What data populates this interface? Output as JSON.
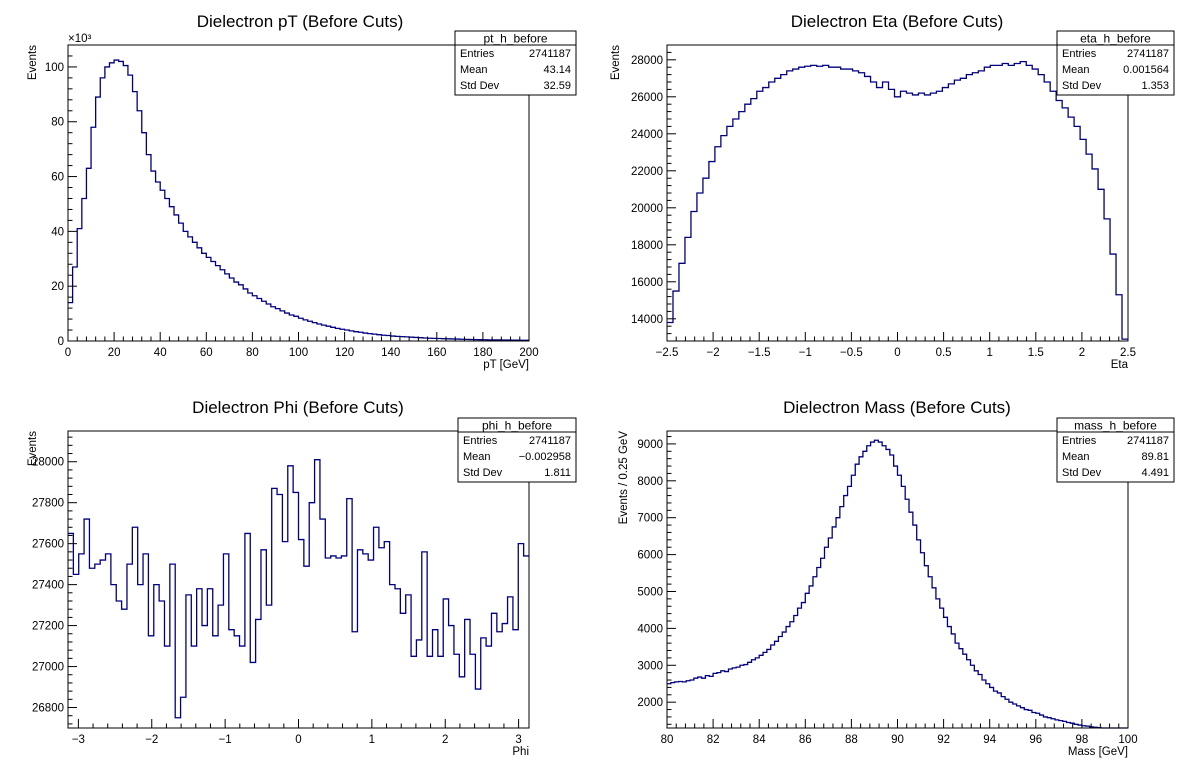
{
  "chart_data": [
    {
      "id": "pt",
      "type": "histogram",
      "title": "Dielectron pT (Before Cuts)",
      "xlabel": "pT [GeV]",
      "ylabel": "Events",
      "exponent": "×10³",
      "xlim": [
        0,
        200
      ],
      "ylim": [
        0,
        108
      ],
      "xticks": [
        0,
        20,
        40,
        60,
        80,
        100,
        120,
        140,
        160,
        180,
        200
      ],
      "yticks": [
        0,
        20,
        40,
        60,
        80,
        100
      ],
      "stats": {
        "name": "pt_h_before",
        "entries_label": "Entries",
        "entries": "2741187",
        "mean_label": "Mean",
        "mean": "43.14",
        "std_label": "Std Dev",
        "std": "32.59"
      },
      "bin_edges": [
        0,
        200
      ],
      "values": [
        14,
        27,
        41,
        52,
        63,
        78,
        89,
        96,
        100,
        101.5,
        102.5,
        102,
        100.5,
        97,
        91,
        84,
        76,
        68,
        62,
        58,
        55,
        52,
        49,
        46,
        43,
        40,
        38,
        36,
        34,
        32,
        30.5,
        29,
        27.5,
        26,
        24.5,
        23,
        21.5,
        20.5,
        19,
        17.5,
        16.5,
        15.5,
        14.5,
        13.5,
        12.5,
        11.8,
        11,
        10.2,
        9.5,
        9,
        8.3,
        7.7,
        7.2,
        6.7,
        6.2,
        5.8,
        5.4,
        5,
        4.6,
        4.3,
        4,
        3.7,
        3.4,
        3.2,
        2.9,
        2.7,
        2.5,
        2.3,
        2.1,
        2,
        1.8,
        1.7,
        1.6,
        1.5,
        1.4,
        1.3,
        1.2,
        1.1,
        1,
        0.95,
        0.9,
        0.85,
        0.8,
        0.75,
        0.7,
        0.65,
        0.6,
        0.55,
        0.5,
        0.48,
        0.45,
        0.42,
        0.4,
        0.38,
        0.36,
        0.34,
        0.32,
        0.3,
        0.28,
        0.26
      ]
    },
    {
      "id": "eta",
      "type": "histogram",
      "title": "Dielectron Eta (Before Cuts)",
      "xlabel": "Eta",
      "ylabel": "Events",
      "xlim": [
        -2.5,
        2.5
      ],
      "ylim": [
        12800,
        28800
      ],
      "xticks": [
        -2.5,
        -2,
        -1.5,
        -1,
        -0.5,
        0,
        0.5,
        1,
        1.5,
        2,
        2.5
      ],
      "yticks": [
        14000,
        16000,
        18000,
        20000,
        22000,
        24000,
        26000,
        28000
      ],
      "stats": {
        "name": "eta_h_before",
        "entries_label": "Entries",
        "entries": "2741187",
        "mean_label": "Mean",
        "mean": "0.001564",
        "std_label": "Std Dev",
        "std": "1.353"
      },
      "bin_edges": [
        -2.5,
        2.5
      ],
      "values": [
        13800,
        15500,
        17000,
        18400,
        19800,
        20800,
        21600,
        22500,
        23300,
        23900,
        24400,
        24800,
        25200,
        25600,
        25900,
        26300,
        26500,
        26800,
        27000,
        27200,
        27400,
        27500,
        27600,
        27650,
        27700,
        27650,
        27700,
        27600,
        27600,
        27500,
        27500,
        27400,
        27300,
        27100,
        26800,
        26500,
        26800,
        26400,
        26000,
        26300,
        26200,
        26100,
        26200,
        26100,
        26200,
        26300,
        26500,
        26700,
        26900,
        27000,
        27200,
        27300,
        27400,
        27600,
        27700,
        27700,
        27800,
        27700,
        27800,
        27900,
        27700,
        27500,
        27200,
        26800,
        26300,
        25800,
        25400,
        24900,
        24400,
        23700,
        22900,
        22100,
        21000,
        19400,
        17500,
        15300,
        12900
      ]
    },
    {
      "id": "phi",
      "type": "histogram",
      "title": "Dielectron Phi (Before Cuts)",
      "xlabel": "Phi",
      "ylabel": "Events",
      "xlim": [
        -3.14159,
        3.14159
      ],
      "ylim": [
        26700,
        28150
      ],
      "xticks": [
        -3,
        -2,
        -1,
        0,
        1,
        2,
        3
      ],
      "yticks": [
        26800,
        27000,
        27200,
        27400,
        27600,
        27800,
        28000
      ],
      "stats": {
        "name": "phi_h_before",
        "entries_label": "Entries",
        "entries": "2741187",
        "mean_label": "Mean",
        "mean": "−0.002958",
        "std_label": "Std Dev",
        "std": "1.811"
      },
      "bin_edges": [
        -3.14159,
        3.14159
      ],
      "values": [
        27650,
        27450,
        27550,
        27720,
        27480,
        27500,
        27520,
        27550,
        27400,
        27320,
        27280,
        27500,
        27680,
        27400,
        27550,
        27150,
        27400,
        27320,
        27100,
        27500,
        26750,
        26850,
        27350,
        27100,
        27380,
        27200,
        27380,
        27150,
        27300,
        27550,
        27180,
        27150,
        27100,
        27650,
        27020,
        27230,
        27570,
        27300,
        27870,
        27840,
        27610,
        27980,
        27850,
        27620,
        27490,
        27800,
        28010,
        27720,
        27530,
        27540,
        27530,
        27540,
        27820,
        27170,
        27570,
        27550,
        27520,
        27680,
        27580,
        27610,
        27400,
        27380,
        27260,
        27350,
        27050,
        27130,
        27560,
        27050,
        27180,
        27050,
        27330,
        27200,
        27060,
        26950,
        27230,
        27060,
        26890,
        27140,
        27100,
        27260,
        27170,
        27210,
        27340,
        27180,
        27600,
        27540
      ]
    },
    {
      "id": "mass",
      "type": "histogram",
      "title": "Dielectron Mass (Before Cuts)",
      "xlabel": "Mass [GeV]",
      "ylabel": "Events / 0.25 GeV",
      "xlim": [
        80,
        100
      ],
      "ylim": [
        1300,
        9350
      ],
      "xticks": [
        80,
        82,
        84,
        86,
        88,
        90,
        92,
        94,
        96,
        98,
        100
      ],
      "yticks": [
        2000,
        3000,
        4000,
        5000,
        6000,
        7000,
        8000,
        9000
      ],
      "stats": {
        "name": "mass_h_before",
        "entries_label": "Entries",
        "entries": "2741187",
        "mean_label": "Mean",
        "mean": "89.81",
        "std_label": "Std Dev",
        "std": "4.491"
      },
      "bin_edges": [
        80,
        100
      ],
      "values": [
        2500,
        2530,
        2550,
        2560,
        2550,
        2580,
        2600,
        2650,
        2680,
        2650,
        2720,
        2700,
        2780,
        2800,
        2850,
        2830,
        2900,
        2930,
        2950,
        3000,
        3020,
        3080,
        3150,
        3200,
        3270,
        3350,
        3430,
        3550,
        3650,
        3780,
        3900,
        4050,
        4180,
        4350,
        4550,
        4700,
        4950,
        5150,
        5400,
        5650,
        5900,
        6200,
        6450,
        6750,
        7000,
        7300,
        7600,
        7850,
        8150,
        8450,
        8650,
        8800,
        8950,
        9050,
        9100,
        9050,
        8950,
        8850,
        8700,
        8400,
        8150,
        7850,
        7500,
        7150,
        6800,
        6400,
        6050,
        5700,
        5400,
        5100,
        4800,
        4550,
        4300,
        4050,
        3850,
        3600,
        3450,
        3300,
        3150,
        3000,
        2850,
        2750,
        2600,
        2500,
        2400,
        2300,
        2250,
        2150,
        2080,
        2000,
        1950,
        1900,
        1850,
        1800,
        1780,
        1720,
        1700,
        1650,
        1600,
        1580,
        1550,
        1520,
        1500,
        1480,
        1450,
        1430,
        1400,
        1380,
        1360,
        1350,
        1330,
        1320,
        1310,
        1300,
        1290,
        1280,
        1270,
        1260,
        1250,
        1240
      ]
    }
  ]
}
